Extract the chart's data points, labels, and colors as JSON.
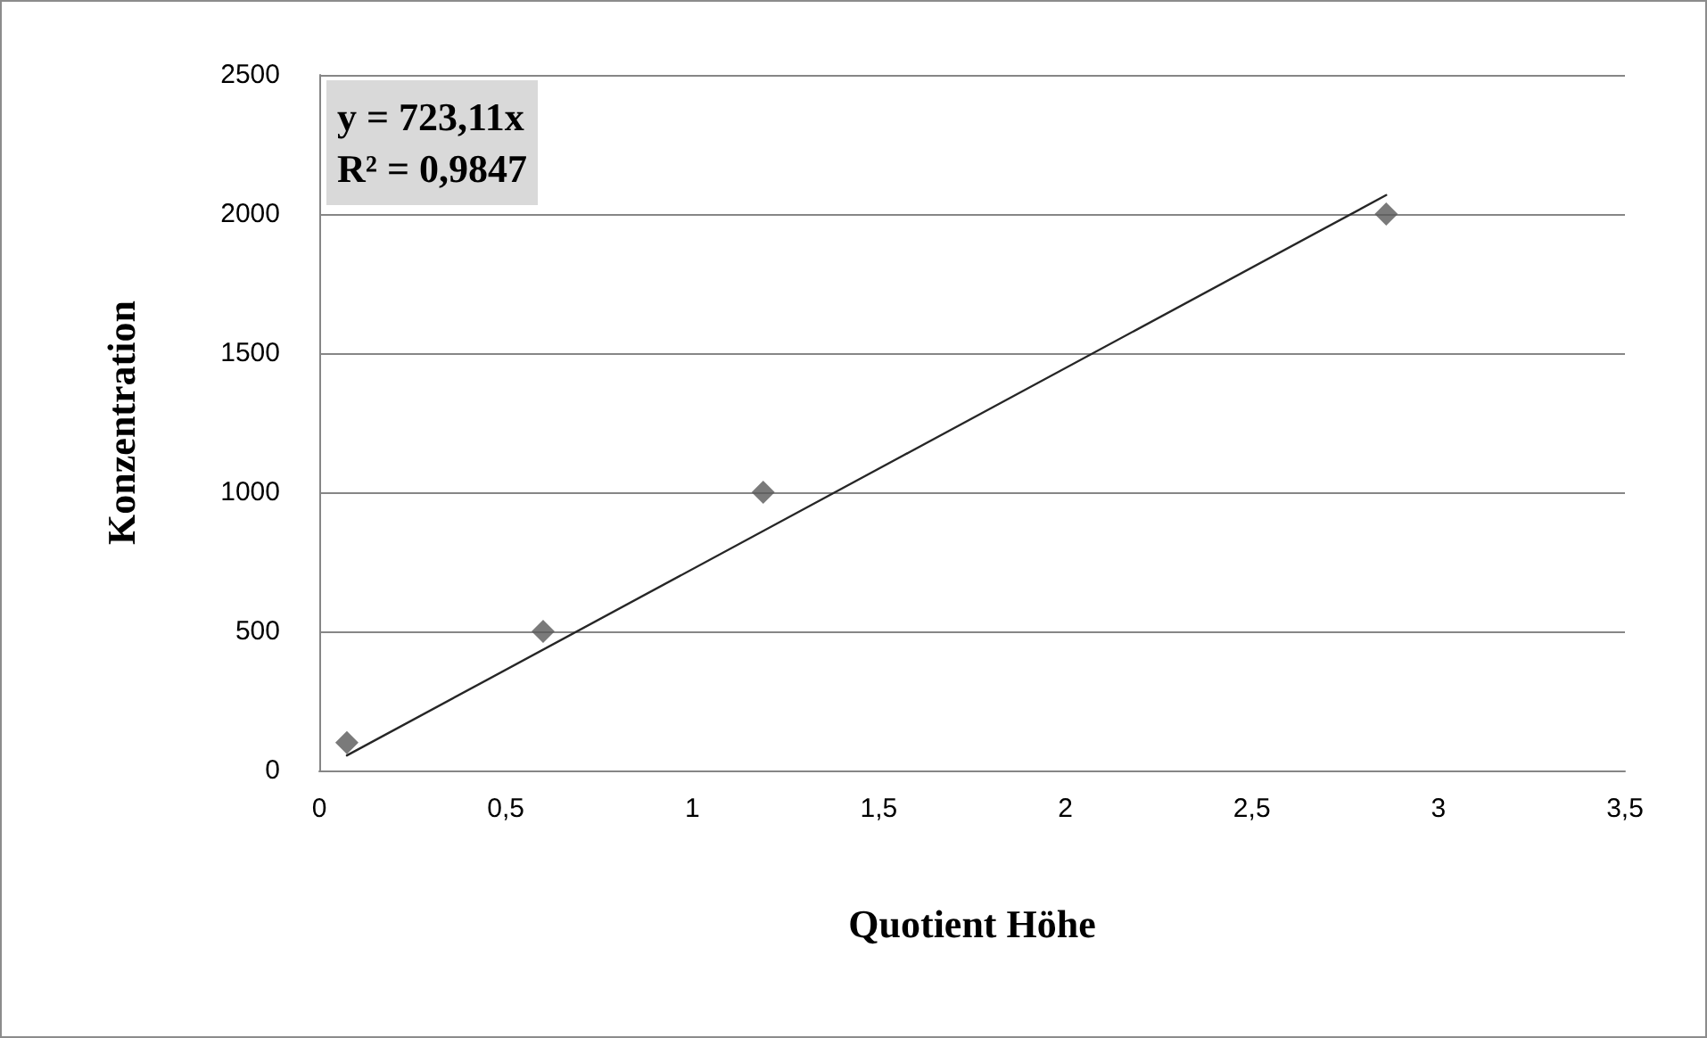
{
  "chart_data": {
    "type": "scatter",
    "xlabel": "Quotient Höhe",
    "ylabel": "Konzentration",
    "annotations": [
      "y = 723,11x\nR² = 0,9847"
    ],
    "series": [
      {
        "color": "#595959",
        "marker": "diamond",
        "x": [
          0.074,
          0.6,
          1.19,
          2.86
        ],
        "values": [
          100,
          500,
          1000,
          2000
        ]
      },
      {
        "type": "line",
        "color": "#262626",
        "marker": "none",
        "x": [
          0.074,
          2.86
        ],
        "values": [
          54,
          2068
        ]
      }
    ],
    "xlim": [
      0,
      3.5
    ],
    "xticks": [
      0,
      {
        "value": 0.5,
        "label": "0,5"
      },
      1,
      {
        "value": 1.5,
        "label": "1,5"
      },
      2,
      {
        "value": 2.5,
        "label": "2,5"
      },
      3,
      {
        "value": 3.5,
        "label": "3,5"
      }
    ],
    "ylim": [
      0,
      2500
    ],
    "yticks": [
      0,
      500,
      1000,
      1500,
      2000,
      2500
    ],
    "grid": "y"
  }
}
